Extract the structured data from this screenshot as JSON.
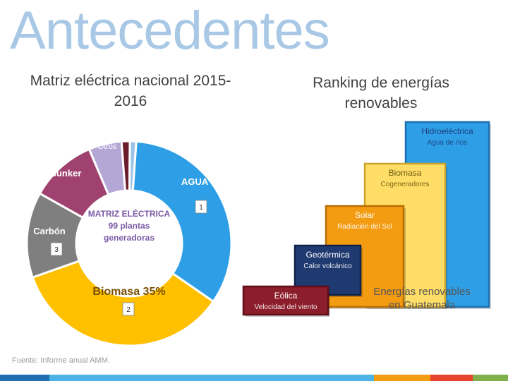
{
  "header": {
    "title": "Antecedentes",
    "left_subtitle": "Matriz eléctrica nacional 2015-2016",
    "right_subtitle": "Ranking de energías renovables"
  },
  "donut": {
    "center_text": [
      "MATRIZ ELÉCTRICA",
      "99 plantas",
      "generadoras"
    ],
    "segments": [
      {
        "label": "AGUA",
        "share": 0.335,
        "color": "#2e9fe6",
        "rank": "1"
      },
      {
        "label": "Biomasa 35%",
        "share": 0.35,
        "color": "#ffc000",
        "rank": "2"
      },
      {
        "label": "Carbón",
        "share": 0.135,
        "color": "#7f7f7f",
        "rank": "3"
      },
      {
        "label": "Bunker",
        "share": 0.105,
        "color": "#a0426f",
        "rank": ""
      },
      {
        "label": "Otros",
        "share": 0.052,
        "color": "#b4a7d6",
        "rank": ""
      },
      {
        "label": "",
        "share": 0.013,
        "color": "#6b1d2c",
        "rank": ""
      },
      {
        "label": "",
        "share": 0.01,
        "color": "#9dc3e6",
        "rank": ""
      }
    ]
  },
  "ranking": {
    "items": [
      {
        "name": "Hidroeléctrica",
        "desc": "Agua de ríos",
        "fill": "#2e9fe6",
        "border": "#1a6fb0",
        "text": "#1e3f80"
      },
      {
        "name": "Biomasa",
        "desc": "Cogeneradores",
        "fill": "#ffdd66",
        "border": "#c9a227",
        "text": "#6b5a10"
      },
      {
        "name": "Solar",
        "desc": "Radiación del Sol",
        "fill": "#f39c12",
        "border": "#b86e00",
        "text": "#ffffff"
      },
      {
        "name": "Geotérmica",
        "desc": "Calor volcánico",
        "fill": "#1f3a70",
        "border": "#0f2148",
        "text": "#ffffff"
      },
      {
        "name": "Eólica",
        "desc": "Velocidad del viento",
        "fill": "#8c1d2a",
        "border": "#5e0e18",
        "text": "#ffffff"
      }
    ],
    "caption": [
      "Energías renovables",
      "en Guatemala"
    ]
  },
  "footer": {
    "source": "Fuente: Informe anual AMM.",
    "bar_colors": [
      "#1f6fb2",
      "#4db3e6",
      "#f39c12",
      "#e8432e",
      "#7fb04a"
    ]
  }
}
